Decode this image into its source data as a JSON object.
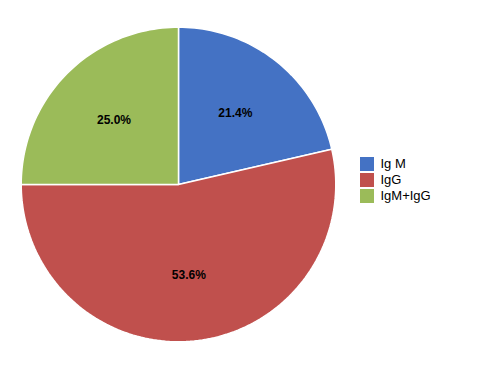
{
  "chart_data": {
    "type": "pie",
    "categories": [
      "Ig M",
      "IgG",
      "IgM+IgG"
    ],
    "values": [
      21.4,
      53.6,
      25.0
    ],
    "value_labels": [
      "21.4%",
      "53.6%",
      "25.0%"
    ],
    "colors": [
      "#4472C4",
      "#C0504D",
      "#9BBB59"
    ],
    "data_labels": true,
    "legend": "right"
  }
}
